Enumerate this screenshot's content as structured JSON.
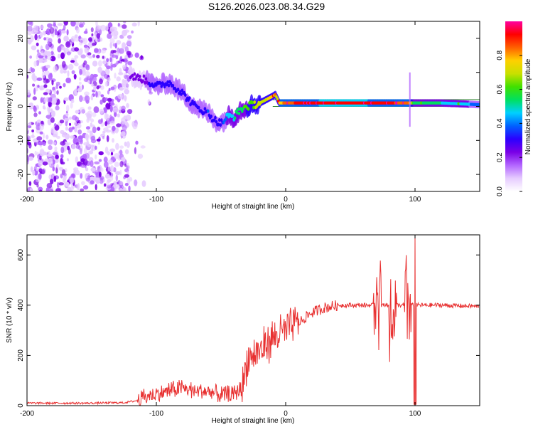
{
  "title": "S126.2026.023.08.34.G29",
  "colors": {
    "snr_line": "#e83030",
    "spec_line": "#1c7a1c",
    "colormap": [
      "#ffffff",
      "#e6ccff",
      "#b366ff",
      "#7a00e6",
      "#2b00ff",
      "#0060ff",
      "#00d0ff",
      "#00e060",
      "#40e000",
      "#c8e000",
      "#ffd000",
      "#ff6000",
      "#ff0000",
      "#ff00a0"
    ]
  },
  "chart_data": [
    {
      "type": "heatmap",
      "name": "spectrogram",
      "xlabel": "Height of straight line (km)",
      "ylabel": "Frequency (Hz)",
      "xlim": [
        -200,
        150
      ],
      "ylim": [
        -25,
        25
      ],
      "xticks": [
        -200,
        -100,
        0,
        100
      ],
      "yticks": [
        -20,
        -10,
        0,
        10,
        20
      ],
      "noise_region_x": [
        -200,
        -120
      ],
      "ridge": {
        "x": [
          -120,
          -110,
          -100,
          -90,
          -80,
          -70,
          -60,
          -55,
          -50,
          -45,
          -40,
          -35,
          -30,
          -20,
          -10,
          -8,
          -5,
          0,
          10,
          30,
          60,
          80,
          95,
          100,
          120,
          150
        ],
        "freq": [
          9,
          8,
          6,
          7,
          4,
          0,
          -2,
          -4,
          -5,
          -3,
          -3,
          -1,
          0,
          1,
          3,
          3.5,
          1,
          1,
          1,
          1,
          1,
          1,
          1,
          1,
          1,
          0.5
        ],
        "amplitude": [
          0.2,
          0.25,
          0.3,
          0.3,
          0.3,
          0.3,
          0.35,
          0.3,
          0.3,
          0.45,
          0.5,
          0.55,
          0.6,
          0.7,
          0.75,
          0.7,
          0.75,
          0.85,
          0.9,
          0.95,
          0.95,
          0.9,
          0.85,
          0.5,
          0.5,
          0.4
        ]
      },
      "colorbar": {
        "label": "Normalized spectral amplitude",
        "range": [
          0,
          1
        ],
        "ticks": [
          "0.0",
          "0.2",
          "0.4",
          "0.6",
          "0.8"
        ]
      }
    },
    {
      "type": "line",
      "name": "snr",
      "xlabel": "Height of straight line (km)",
      "ylabel": "SNR (10 * v/v)",
      "xlim": [
        -200,
        150
      ],
      "ylim": [
        0,
        680
      ],
      "xticks": [
        -200,
        -100,
        0,
        100
      ],
      "yticks": [
        0,
        200,
        400,
        600
      ],
      "series": [
        {
          "name": "SNR",
          "x": [
            -200,
            -150,
            -125,
            -115,
            -110,
            -100,
            -90,
            -80,
            -70,
            -60,
            -55,
            -50,
            -45,
            -40,
            -35,
            -32,
            -30,
            -25,
            -20,
            -10,
            0,
            10,
            20,
            30,
            40,
            50,
            60,
            70,
            80,
            90,
            100,
            120,
            150
          ],
          "y": [
            10,
            10,
            12,
            20,
            35,
            45,
            60,
            70,
            60,
            55,
            50,
            40,
            45,
            45,
            70,
            110,
            180,
            200,
            220,
            270,
            300,
            330,
            370,
            390,
            400,
            400,
            400,
            400,
            400,
            400,
            400,
            400,
            395
          ]
        }
      ]
    }
  ]
}
